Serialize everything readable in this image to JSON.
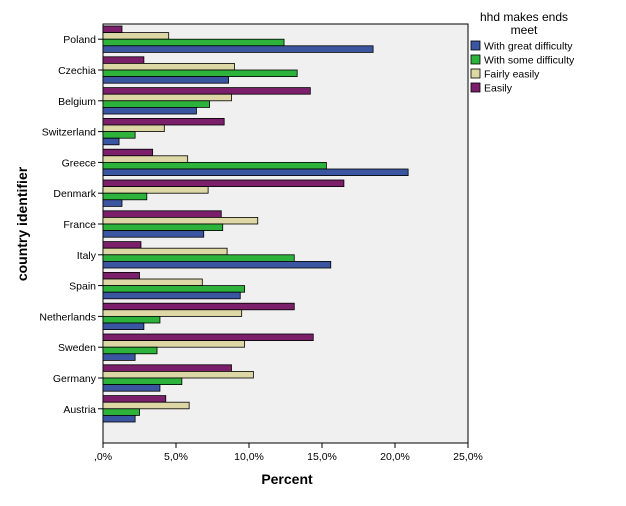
{
  "chart_data": {
    "type": "bar",
    "orientation": "horizontal",
    "title": "",
    "xlabel": "Percent",
    "ylabel": "country identifier",
    "xlim": [
      0,
      25
    ],
    "x_ticks": [
      ",0%",
      "5,0%",
      "10,0%",
      "15,0%",
      "20,0%",
      "25,0%"
    ],
    "grid": false,
    "legend": {
      "title": "hhd makes ends meet",
      "position": "top-right"
    },
    "categories": [
      "Poland",
      "Czechia",
      "Belgium",
      "Switzerland",
      "Greece",
      "Denmark",
      "France",
      "Italy",
      "Spain",
      "Netherlands",
      "Sweden",
      "Germany",
      "Austria"
    ],
    "series": [
      {
        "name": "Easily",
        "color": "#7b1f6a",
        "values": [
          1.3,
          2.8,
          14.2,
          8.3,
          3.4,
          16.5,
          8.1,
          2.6,
          2.5,
          13.1,
          14.4,
          8.8,
          4.3
        ]
      },
      {
        "name": "Fairly easily",
        "color": "#dcd7a4",
        "values": [
          4.5,
          9.0,
          8.8,
          4.2,
          5.8,
          7.2,
          10.6,
          8.5,
          6.8,
          9.5,
          9.7,
          10.3,
          5.9
        ]
      },
      {
        "name": "With some difficulty",
        "color": "#2db23c",
        "values": [
          12.4,
          13.3,
          7.3,
          2.2,
          15.3,
          3.0,
          8.2,
          13.1,
          9.7,
          3.9,
          3.7,
          5.4,
          2.5
        ]
      },
      {
        "name": "With great difficulty",
        "color": "#3b56a0",
        "values": [
          18.5,
          8.6,
          6.4,
          1.1,
          20.9,
          1.3,
          6.9,
          15.6,
          9.4,
          2.8,
          2.2,
          3.9,
          2.2
        ]
      }
    ],
    "legend_order": [
      "With great difficulty",
      "With some difficulty",
      "Fairly easily",
      "Easily"
    ]
  }
}
